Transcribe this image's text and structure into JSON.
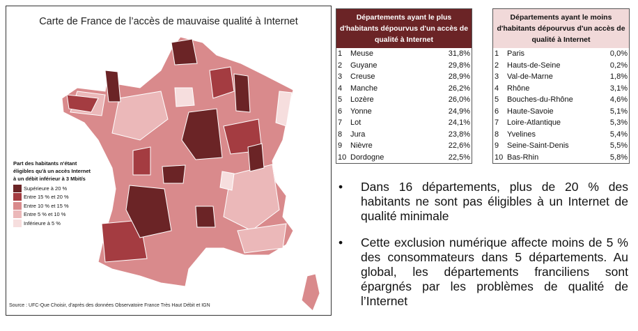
{
  "map": {
    "title": "Carte de France de l’accès de mauvaise qualité à Internet",
    "legend": {
      "title": "Part des habitants n'étant éligibles qu'à un accès Internet à un débit inférieur à 3 Mbit/s",
      "items": [
        {
          "label": "Supérieure à 20 %",
          "color": "#6b2426"
        },
        {
          "label": "Entre 15 % et 20 %",
          "color": "#a43c41"
        },
        {
          "label": "Entre 10 % et 15 %",
          "color": "#d98a8c"
        },
        {
          "label": "Entre 5 % et 10 %",
          "color": "#ebb8b9"
        },
        {
          "label": "Inférieure à 5 %",
          "color": "#f6dede"
        }
      ]
    },
    "source": "Source : UFC-Que Choisir, d’après des données Observatoire France Très Haut Débit et IGN"
  },
  "table_most": {
    "header": "Départements ayant le plus d'habitants dépourvus d'un accès de qualité à Internet",
    "rows": [
      [
        "1",
        "Meuse",
        "31,8%"
      ],
      [
        "2",
        "Guyane",
        "29,8%"
      ],
      [
        "3",
        "Creuse",
        "28,9%"
      ],
      [
        "4",
        "Manche",
        "26,2%"
      ],
      [
        "5",
        "Lozère",
        "26,0%"
      ],
      [
        "6",
        "Yonne",
        "24,9%"
      ],
      [
        "7",
        "Lot",
        "24,1%"
      ],
      [
        "8",
        "Jura",
        "23,8%"
      ],
      [
        "9",
        "Nièvre",
        "22,6%"
      ],
      [
        "10",
        "Dordogne",
        "22,5%"
      ]
    ]
  },
  "table_least": {
    "header": "Départements ayant le moins d'habitants dépourvus d'un accès de qualité à Internet",
    "rows": [
      [
        "1",
        "Paris",
        "0,0%"
      ],
      [
        "2",
        "Hauts-de-Seine",
        "0,2%"
      ],
      [
        "3",
        "Val-de-Marne",
        "1,8%"
      ],
      [
        "4",
        "Rhône",
        "3,1%"
      ],
      [
        "5",
        "Bouches-du-Rhône",
        "4,6%"
      ],
      [
        "6",
        "Haute-Savoie",
        "5,1%"
      ],
      [
        "7",
        "Loire-Atlantique",
        "5,3%"
      ],
      [
        "8",
        "Yvelines",
        "5,4%"
      ],
      [
        "9",
        "Seine-Saint-Denis",
        "5,5%"
      ],
      [
        "10",
        "Bas-Rhin",
        "5,8%"
      ]
    ]
  },
  "bullets": [
    {
      "marker": "•",
      "text": "Dans 16 départements, plus de 20 % des habitants ne sont pas éligibles à un Internet de qualité minimale"
    },
    {
      "marker": "•",
      "text": "Cette exclusion numérique affecte moins de 5 % des consommateurs dans 5 départements. Au global, les départements franciliens sont épargnés par les problèmes de qualité de l’Internet"
    }
  ]
}
